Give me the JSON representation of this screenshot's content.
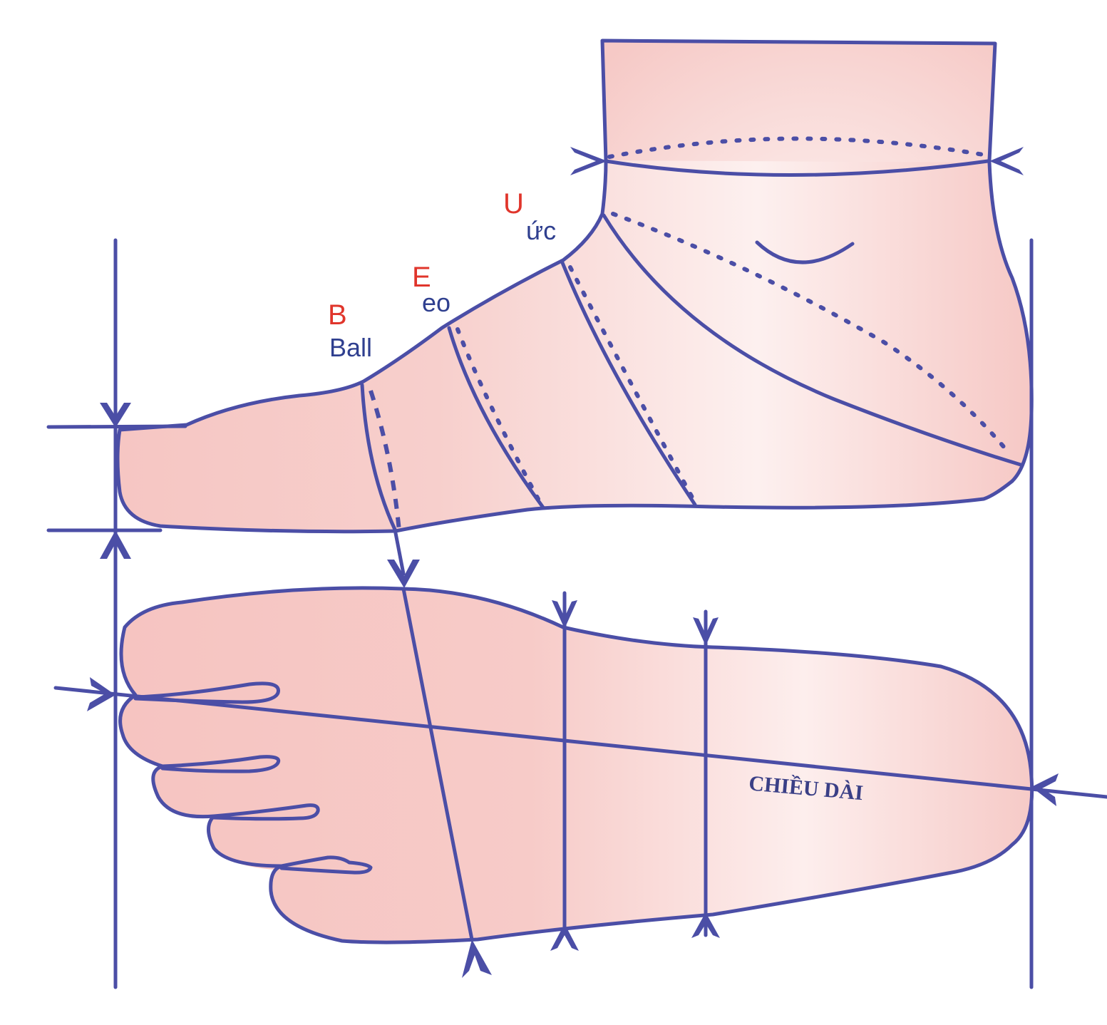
{
  "labels": {
    "ball": {
      "letter": "B",
      "word": "Ball"
    },
    "waist": {
      "letter": "E",
      "word": "eo"
    },
    "instep": {
      "letter": "U",
      "word": "ức"
    },
    "length": "CHIỀU DÀI"
  },
  "colors": {
    "line": "#4b4ea6",
    "skin": "#f5c7c4",
    "skin_light": "#fbe7e6",
    "letter_red": "#e0352b",
    "word_blue": "#2f3f8f"
  }
}
